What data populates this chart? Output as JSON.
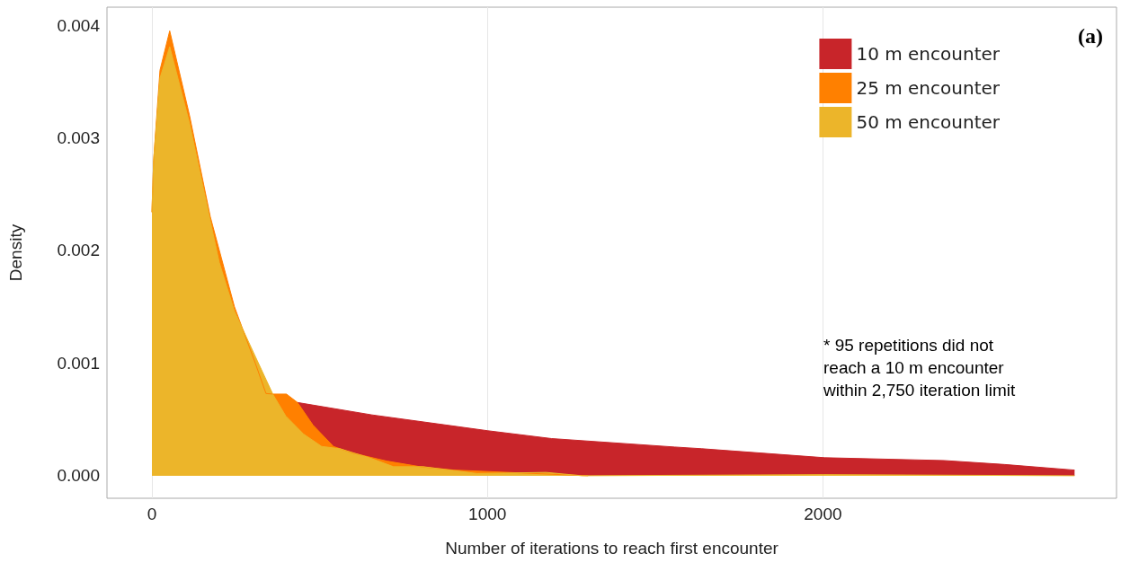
{
  "chart_data": {
    "type": "area",
    "xlabel": "Number of iterations to reach first encounter",
    "ylabel": "Density",
    "xlim": [
      -134,
      2875
    ],
    "xticks": [
      0,
      1000,
      2000
    ],
    "ylim": [
      -0.0002,
      0.00416
    ],
    "yticks": [
      {
        "value": 0,
        "label": "0.000"
      },
      {
        "value": 0.001,
        "label": "0.001"
      },
      {
        "value": 0.002,
        "label": "0.002"
      },
      {
        "value": 0.003,
        "label": "0.003"
      },
      {
        "value": 0.004,
        "label": "0.004"
      }
    ],
    "grid": "x",
    "legend": "top right",
    "annotations": [
      "(a)",
      "* 95 repetitions did not\nreach a 10 m encounter\nwithin 2,750 iteration limit"
    ],
    "series": [
      {
        "name": "10 m encounter",
        "color": "#c8252a",
        "x": [
          434,
          656,
          1000,
          1191,
          1558,
          1639,
          2005,
          2361,
          2541,
          2750
        ],
        "values": [
          0.00065,
          0.00054,
          0.0004,
          0.00033,
          0.000255,
          0.00024,
          0.00016,
          0.000135,
          0.0001,
          5e-05
        ]
      },
      {
        "name": "25 m encounter",
        "color": "#ff8000",
        "x": [
          0,
          5,
          24,
          53,
          112,
          174,
          246,
          308,
          340,
          361,
          401,
          434,
          480,
          541,
          600,
          700,
          800,
          900,
          1300
        ],
        "values": [
          0.00234,
          0.0028,
          0.0036,
          0.00395,
          0.0032,
          0.0023,
          0.0015,
          0.001,
          0.00073,
          0.000725,
          0.000725,
          0.00065,
          0.00045,
          0.00026,
          0.0002,
          0.00013,
          8e-05,
          5e-05,
          0
        ]
      },
      {
        "name": "50 m encounter",
        "color": "#ecb52a",
        "x": [
          0,
          5,
          24,
          53,
          112,
          174,
          201,
          246,
          308,
          361,
          399,
          452,
          506,
          560,
          648,
          720,
          809,
          969,
          1175,
          1282,
          2000,
          2750
        ],
        "values": [
          0.00234,
          0.0028,
          0.00353,
          0.00381,
          0.00313,
          0.00226,
          0.00189,
          0.00146,
          0.00106,
          0.00072,
          0.00053,
          0.00037,
          0.00026,
          0.00024,
          0.00016,
          8e-05,
          8e-05,
          2e-05,
          3e-05,
          0,
          1e-05,
          0
        ]
      }
    ]
  }
}
